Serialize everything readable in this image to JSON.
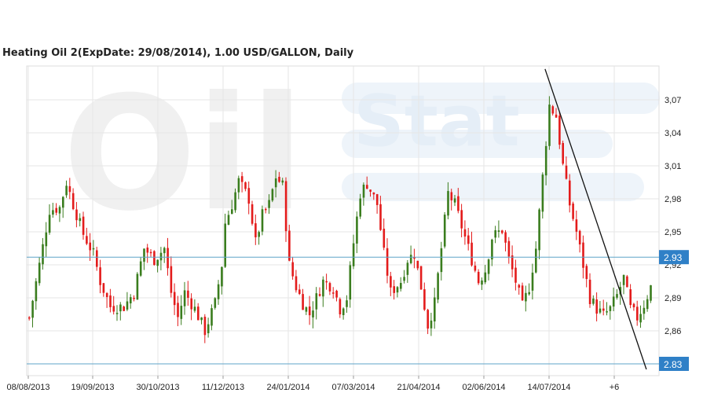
{
  "chart_data": {
    "type": "candlestick",
    "title": "Heating Oil 2(ExpDate: 29/08/2014), 1.00 USD/GALLON, Daily",
    "watermark": "OilStat",
    "ylim": [
      2.82,
      3.09
    ],
    "y_ticks": [
      "3,07",
      "3,04",
      "3,01",
      "2,98",
      "2,95",
      "2,92",
      "2,89",
      "2,86"
    ],
    "y_tick_values": [
      3.07,
      3.04,
      3.01,
      2.98,
      2.95,
      2.92,
      2.89,
      2.86
    ],
    "x_ticks": [
      "08/08/2013",
      "19/09/2013",
      "30/10/2013",
      "11/12/2013",
      "24/01/2014",
      "07/03/2014",
      "21/04/2014",
      "02/06/2014",
      "14/07/2014",
      "+6"
    ],
    "grid": true,
    "horizontal_levels": [
      {
        "label": "2.93",
        "value": 2.927
      },
      {
        "label": "2.83",
        "value": 2.83
      }
    ],
    "trendline": {
      "from": {
        "bar": 153,
        "value": 3.098
      },
      "to": {
        "bar": 183,
        "value": 2.825
      }
    },
    "colors": {
      "up": "#3a7d1e",
      "down": "#e31b1b",
      "level_line": "#5fa4c8",
      "badge": "#2f80c7",
      "grid": "#e6e6e6",
      "trendline": "#111111"
    },
    "anchors": [
      [
        0,
        2.872
      ],
      [
        3,
        2.92
      ],
      [
        6,
        2.97
      ],
      [
        9,
        2.972
      ],
      [
        11,
        2.995
      ],
      [
        13,
        2.975
      ],
      [
        16,
        2.948
      ],
      [
        19,
        2.93
      ],
      [
        21,
        2.905
      ],
      [
        24,
        2.882
      ],
      [
        28,
        2.882
      ],
      [
        31,
        2.895
      ],
      [
        34,
        2.935
      ],
      [
        37,
        2.925
      ],
      [
        40,
        2.935
      ],
      [
        42,
        2.895
      ],
      [
        44,
        2.872
      ],
      [
        46,
        2.895
      ],
      [
        49,
        2.88
      ],
      [
        52,
        2.86
      ],
      [
        55,
        2.885
      ],
      [
        57,
        2.92
      ],
      [
        58,
        2.958
      ],
      [
        60,
        2.975
      ],
      [
        62,
        2.996
      ],
      [
        65,
        2.98
      ],
      [
        67,
        2.94
      ],
      [
        69,
        2.965
      ],
      [
        71,
        2.975
      ],
      [
        73,
        3.0
      ],
      [
        75,
        2.992
      ],
      [
        77,
        2.92
      ],
      [
        79,
        2.9
      ],
      [
        81,
        2.885
      ],
      [
        83,
        2.875
      ],
      [
        85,
        2.89
      ],
      [
        87,
        2.905
      ],
      [
        90,
        2.9
      ],
      [
        92,
        2.88
      ],
      [
        94,
        2.89
      ],
      [
        96,
        2.94
      ],
      [
        98,
        2.985
      ],
      [
        100,
        2.994
      ],
      [
        103,
        2.975
      ],
      [
        105,
        2.93
      ],
      [
        107,
        2.895
      ],
      [
        110,
        2.905
      ],
      [
        112,
        2.925
      ],
      [
        114,
        2.93
      ],
      [
        116,
        2.9
      ],
      [
        118,
        2.865
      ],
      [
        120,
        2.885
      ],
      [
        122,
        2.935
      ],
      [
        124,
        2.985
      ],
      [
        126,
        2.975
      ],
      [
        128,
        2.955
      ],
      [
        130,
        2.935
      ],
      [
        133,
        2.905
      ],
      [
        135,
        2.915
      ],
      [
        137,
        2.945
      ],
      [
        140,
        2.952
      ],
      [
        142,
        2.925
      ],
      [
        144,
        2.905
      ],
      [
        146,
        2.882
      ],
      [
        148,
        2.9
      ],
      [
        150,
        2.935
      ],
      [
        152,
        3.0
      ],
      [
        154,
        3.065
      ],
      [
        156,
        3.055
      ],
      [
        158,
        3.01
      ],
      [
        160,
        2.975
      ],
      [
        162,
        2.95
      ],
      [
        164,
        2.92
      ],
      [
        166,
        2.89
      ],
      [
        168,
        2.88
      ],
      [
        170,
        2.874
      ],
      [
        172,
        2.88
      ],
      [
        174,
        2.892
      ],
      [
        176,
        2.908
      ],
      [
        178,
        2.88
      ],
      [
        180,
        2.872
      ],
      [
        182,
        2.884
      ],
      [
        184,
        2.9
      ]
    ]
  }
}
